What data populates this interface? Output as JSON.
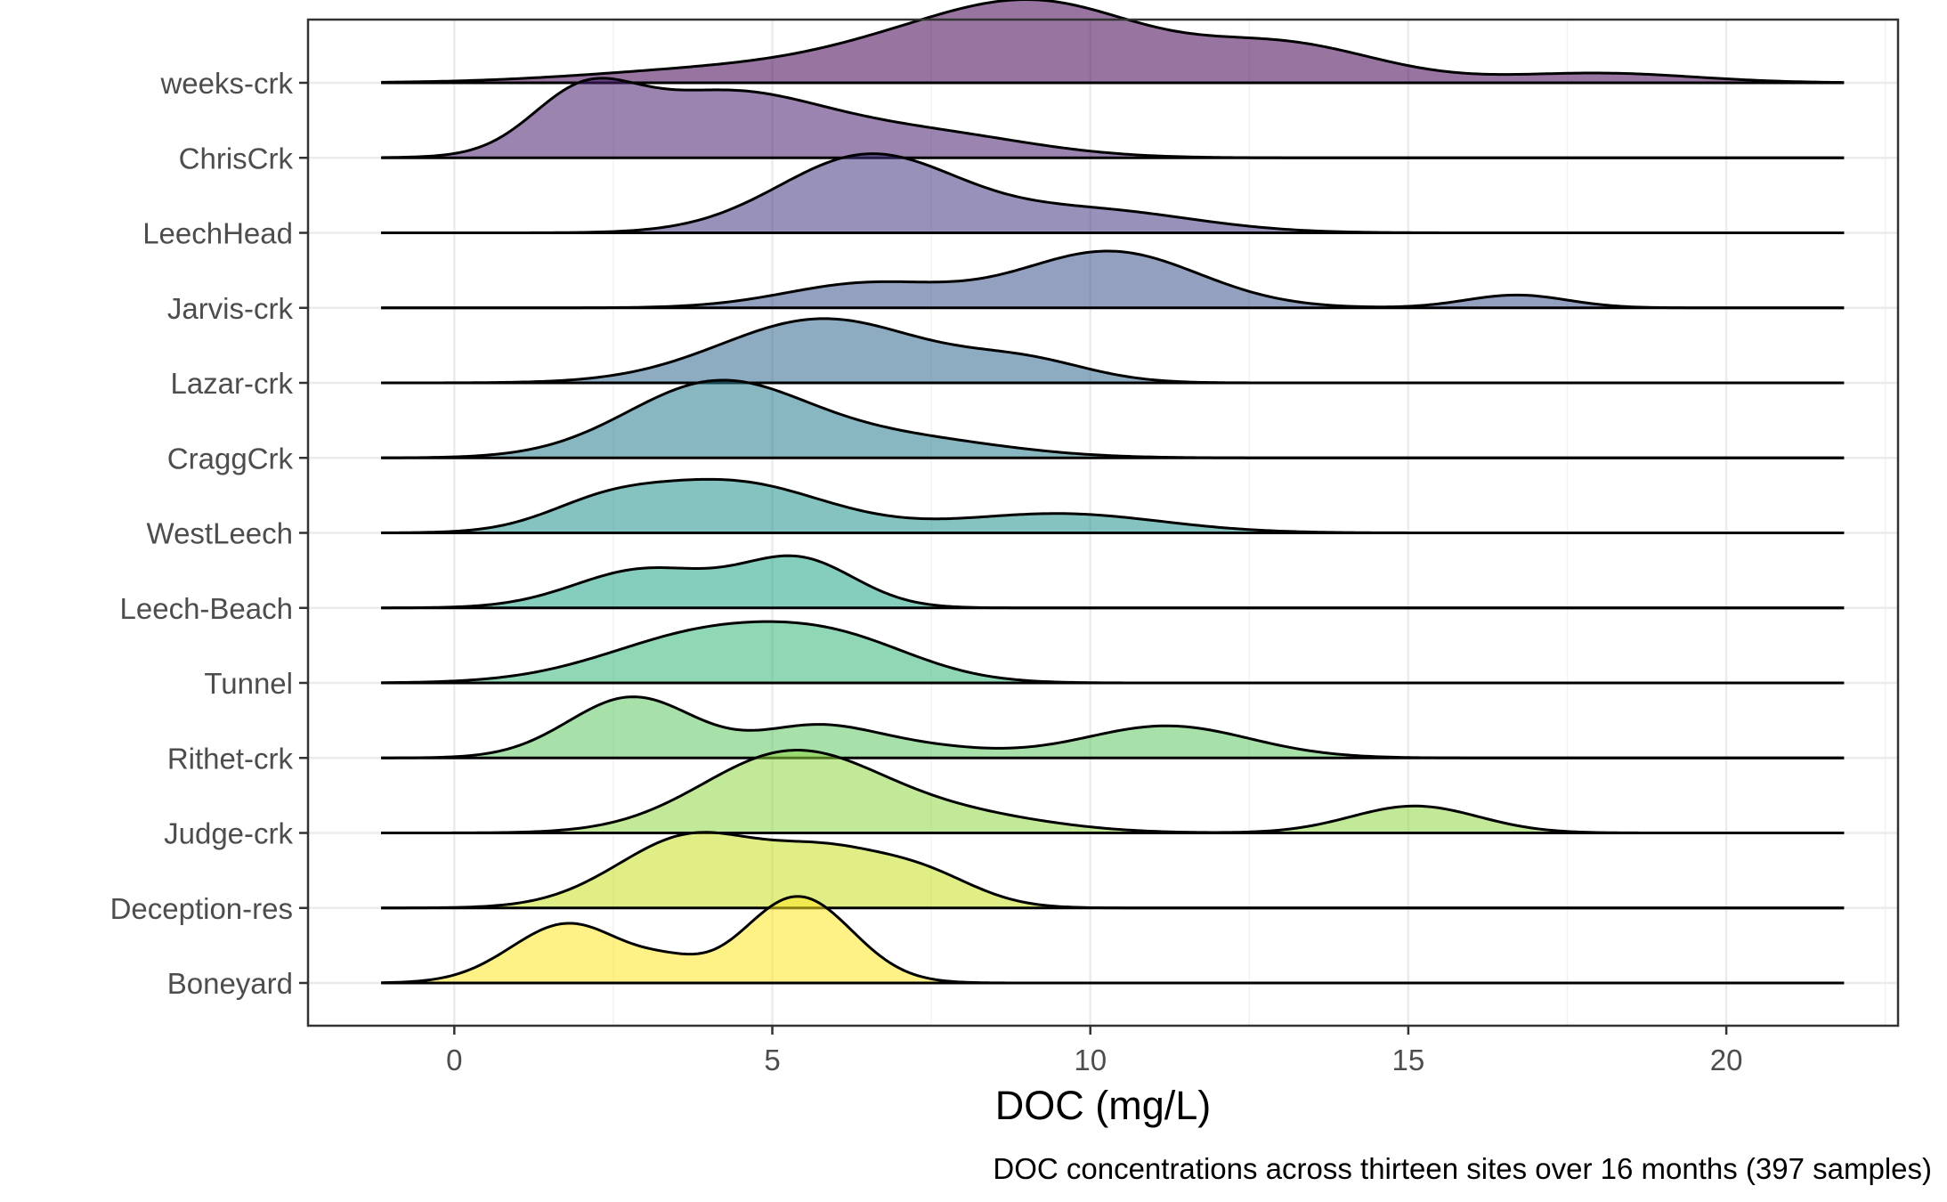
{
  "chart_data": {
    "type": "ridgeline",
    "xlabel": "DOC (mg/L)",
    "ylabel": "",
    "caption": "DOC concentrations across thirteen sites over 16 months (397 samples)",
    "xlim": [
      -2.3,
      22.7
    ],
    "x_ticks": [
      0,
      5,
      10,
      15,
      20
    ],
    "density_range": [
      -1.15,
      21.85
    ],
    "grid": true,
    "legend": "none",
    "colormap": "viridis",
    "fill_opacity": 0.55,
    "categories": [
      "weeks-crk",
      "ChrisCrk",
      "LeechHead",
      "Jarvis-crk",
      "Lazar-crk",
      "CraggCrk",
      "WestLeech",
      "Leech-Beach",
      "Tunnel",
      "Rithet-crk",
      "Judge-crk",
      "Deception-res",
      "Boneyard"
    ],
    "colors": [
      "#440154",
      "#481f70",
      "#443983",
      "#3b528b",
      "#31688e",
      "#287c8e",
      "#21918c",
      "#20a486",
      "#35b779",
      "#5ec962",
      "#90d743",
      "#c8e020",
      "#fde725"
    ],
    "series": [
      {
        "name": "weeks-crk",
        "peaks": [
          [
            0.23,
            4.5,
            2.2
          ],
          [
            0.55,
            7.5,
            1.6
          ],
          [
            0.95,
            9.5,
            1.5
          ],
          [
            0.6,
            13.0,
            1.5
          ],
          [
            0.15,
            18.0,
            1.5
          ]
        ]
      },
      {
        "name": "ChrisCrk",
        "peaks": [
          [
            0.8,
            2.0,
            0.8
          ],
          [
            1.0,
            4.2,
            1.6
          ],
          [
            0.35,
            7.5,
            1.6
          ]
        ]
      },
      {
        "name": "LeechHead",
        "peaks": [
          [
            1.2,
            6.5,
            1.4
          ],
          [
            0.35,
            10.0,
            1.6
          ]
        ]
      },
      {
        "name": "Jarvis-crk",
        "peaks": [
          [
            0.38,
            6.5,
            1.3
          ],
          [
            0.88,
            10.3,
            1.4
          ],
          [
            0.2,
            16.7,
            0.8
          ]
        ]
      },
      {
        "name": "Lazar-crk",
        "peaks": [
          [
            1.0,
            5.8,
            1.6
          ],
          [
            0.3,
            9.0,
            1.0
          ]
        ]
      },
      {
        "name": "CraggCrk",
        "peaks": [
          [
            1.15,
            4.1,
            1.4
          ],
          [
            0.3,
            7.0,
            1.6
          ]
        ]
      },
      {
        "name": "WestLeech",
        "peaks": [
          [
            0.3,
            2.3,
            0.9
          ],
          [
            0.8,
            4.3,
            1.5
          ],
          [
            0.3,
            9.5,
            1.6
          ]
        ]
      },
      {
        "name": "Leech-Beach",
        "peaks": [
          [
            0.6,
            3.0,
            1.1
          ],
          [
            0.75,
            5.4,
            0.9
          ]
        ]
      },
      {
        "name": "Tunnel",
        "peaks": [
          [
            0.8,
            4.1,
            1.6
          ],
          [
            0.45,
            6.2,
            1.2
          ]
        ]
      },
      {
        "name": "Rithet-crk",
        "peaks": [
          [
            0.95,
            2.8,
            1.0
          ],
          [
            0.4,
            5.6,
            0.9
          ],
          [
            0.2,
            7.0,
            1.2
          ],
          [
            0.5,
            11.2,
            1.3
          ]
        ]
      },
      {
        "name": "Judge-crk",
        "peaks": [
          [
            1.25,
            5.3,
            1.4
          ],
          [
            0.25,
            8.0,
            1.4
          ],
          [
            0.42,
            15.1,
            1.0
          ]
        ]
      },
      {
        "name": "Deception-res",
        "peaks": [
          [
            1.15,
            3.8,
            1.2
          ],
          [
            0.55,
            5.8,
            0.8
          ],
          [
            0.6,
            7.2,
            0.9
          ]
        ]
      },
      {
        "name": "Boneyard",
        "peaks": [
          [
            0.93,
            1.8,
            0.9
          ],
          [
            1.35,
            5.4,
            0.85
          ],
          [
            0.2,
            3.4,
            0.5
          ]
        ]
      }
    ]
  }
}
